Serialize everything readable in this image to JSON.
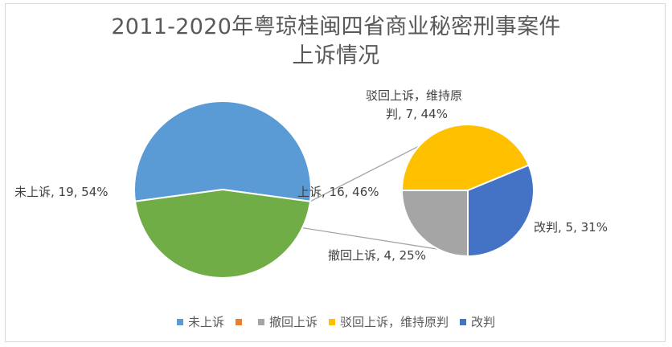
{
  "title_line1": "2011-2020年粤琼桂闽四省商业秘密刑事案件",
  "title_line2": "上诉情况",
  "chart_data": {
    "type": "pie",
    "subtype": "pie-of-pie",
    "main_pie": [
      {
        "name": "未上诉",
        "value": 19,
        "percent": "54%",
        "label": "未上诉, 19, 54%",
        "color": "#5b9bd5"
      },
      {
        "name": "上诉",
        "value": 16,
        "percent": "46%",
        "label": "上诉, 16,  46%",
        "color": "#70ad47"
      }
    ],
    "secondary_pie": [
      {
        "name": "驳回上诉，维持原判",
        "value": 7,
        "percent": "44%",
        "label_lines": [
          "驳回上诉，维持原",
          "判, 7, 44%"
        ],
        "color": "#ffc000"
      },
      {
        "name": "改判",
        "value": 5,
        "percent": "31%",
        "label": "改判, 5, 31%",
        "color": "#4472c4"
      },
      {
        "name": "撤回上诉",
        "value": 4,
        "percent": "25%",
        "label": "撤回上诉, 4, 25%",
        "color": "#a5a5a5"
      }
    ],
    "legend_position": "bottom",
    "legend": [
      {
        "label": "未上诉",
        "color": "#5b9bd5"
      },
      {
        "label": "",
        "color": "#ed7d31"
      },
      {
        "label": "撤回上诉",
        "color": "#a5a5a5"
      },
      {
        "label": "驳回上诉，维持原判",
        "color": "#ffc000"
      },
      {
        "label": "改判",
        "color": "#4472c4"
      }
    ]
  }
}
